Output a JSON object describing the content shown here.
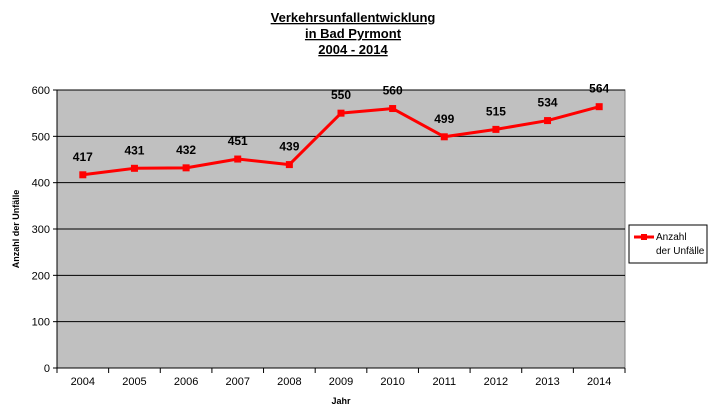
{
  "chart_data": {
    "type": "line",
    "title_lines": [
      "Verkehrsunfallentwicklung",
      "in Bad Pyrmont",
      "2004 - 2014"
    ],
    "xlabel": "Jahr",
    "ylabel": "Anzahl  der Unfälle",
    "categories": [
      "2004",
      "2005",
      "2006",
      "2007",
      "2008",
      "2009",
      "2010",
      "2011",
      "2012",
      "2013",
      "2014"
    ],
    "series": [
      {
        "name_lines": [
          "Anzahl",
          "der Unfälle"
        ],
        "values": [
          417,
          431,
          432,
          451,
          439,
          550,
          560,
          499,
          515,
          534,
          564
        ],
        "color": "#ff0000"
      }
    ],
    "ylim": [
      0,
      600
    ],
    "yticks": [
      "0",
      "100",
      "200",
      "300",
      "400",
      "500",
      "600"
    ],
    "grid": true,
    "legend": "right",
    "plot_background": "#c0c0c0"
  }
}
